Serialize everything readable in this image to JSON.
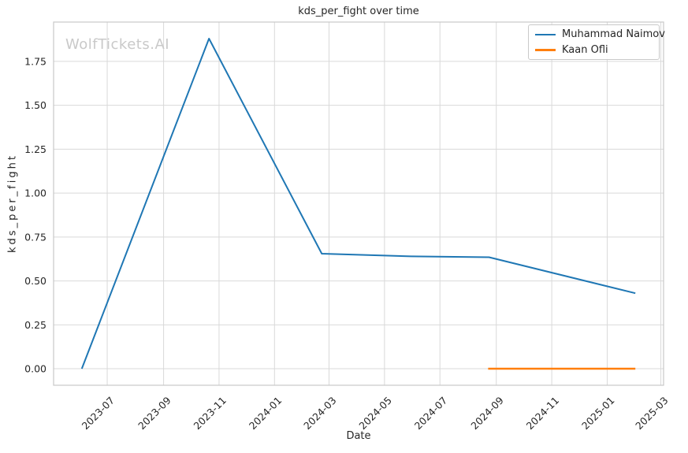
{
  "watermark": "WolfTickets.AI",
  "colors": {
    "background": "#ffffff",
    "grid": "#d9d9d9",
    "spine": "#c8c8c8",
    "text": "#262626",
    "watermark": "#c9c9c9",
    "series_blue": "#1f77b4",
    "series_orange": "#ff7f0e"
  },
  "chart_data": {
    "type": "line",
    "title": "kds_per_fight over time",
    "xlabel": "Date",
    "ylabel": "kds_per_fight",
    "grid": true,
    "legend_position": "upper right",
    "x_axis": {
      "label": "Date",
      "domain": [
        "2023-05-03",
        "2025-03-04"
      ],
      "ticks": [
        "2023-07",
        "2023-09",
        "2023-11",
        "2024-01",
        "2024-03",
        "2024-05",
        "2024-07",
        "2024-09",
        "2024-11",
        "2025-01",
        "2025-03"
      ],
      "tick_rotation_deg": 45
    },
    "y_axis": {
      "label": "kds_per_fight",
      "domain": [
        -0.094,
        1.974
      ],
      "ticks": [
        "0.00",
        "0.25",
        "0.50",
        "0.75",
        "1.00",
        "1.25",
        "1.50",
        "1.75"
      ]
    },
    "series": [
      {
        "name": "Muhammad Naimov",
        "color": "#1f77b4",
        "points": [
          {
            "date": "2023-06-03",
            "value": 0.0
          },
          {
            "date": "2023-10-21",
            "value": 1.88
          },
          {
            "date": "2024-02-22",
            "value": 0.655
          },
          {
            "date": "2024-05-30",
            "value": 0.64
          },
          {
            "date": "2024-08-24",
            "value": 0.635
          },
          {
            "date": "2025-02-01",
            "value": 0.43
          }
        ]
      },
      {
        "name": "Kaan Ofli",
        "color": "#ff7f0e",
        "points": [
          {
            "date": "2024-08-23",
            "value": 0.0
          },
          {
            "date": "2025-02-01",
            "value": 0.0
          }
        ]
      }
    ]
  }
}
